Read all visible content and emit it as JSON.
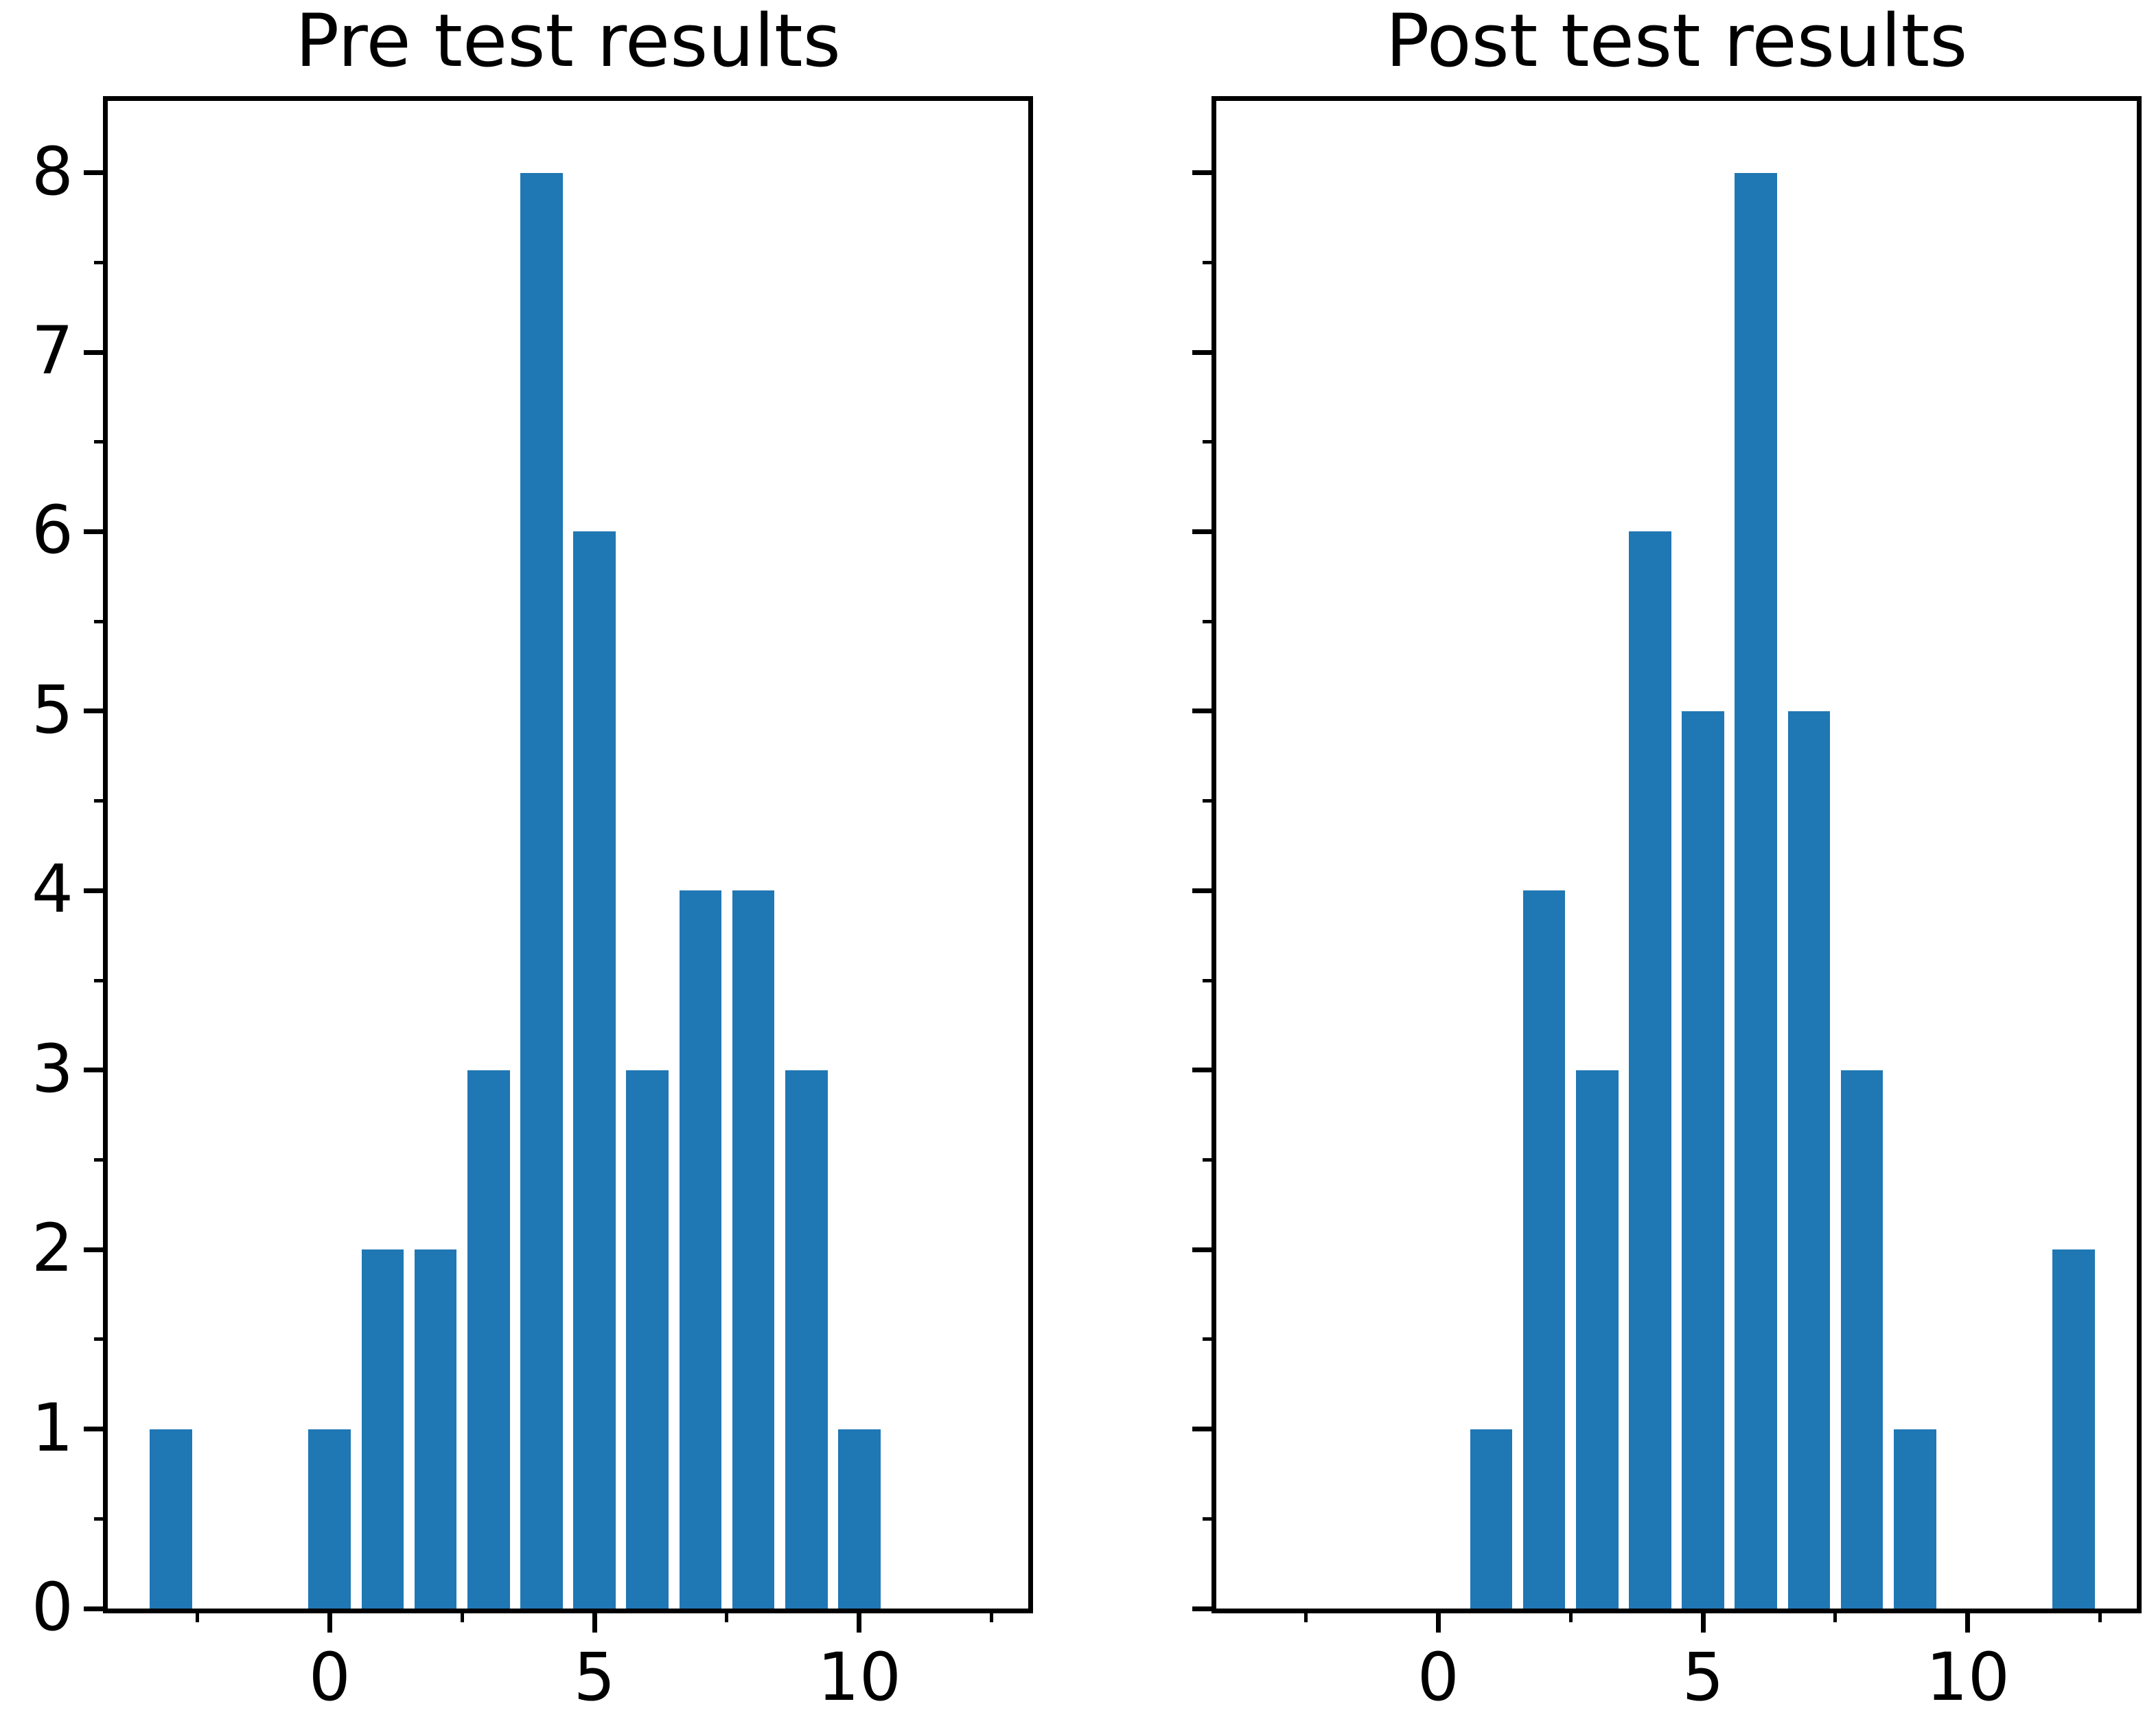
{
  "figure": {
    "background": "#ffffff",
    "text_color": "#000000",
    "axis_color": "#000000"
  },
  "chart_data": [
    {
      "type": "bar",
      "title": "Pre test results",
      "x": [
        -3,
        0,
        1,
        2,
        3,
        4,
        5,
        6,
        7,
        8,
        9,
        10
      ],
      "values": [
        1,
        1,
        2,
        2,
        3,
        8,
        6,
        3,
        4,
        4,
        3,
        1
      ],
      "bar_color": "#1f77b4",
      "bar_width": 0.8,
      "xlim": [
        -4.19,
        13.19
      ],
      "ylim": [
        0,
        8.4
      ],
      "xticks": [
        0,
        5,
        10
      ],
      "xtick_labels": [
        "0",
        "5",
        "10"
      ],
      "xticks_minor": [
        -2.5,
        2.5,
        7.5,
        12.5
      ],
      "yticks": [
        0,
        1,
        2,
        3,
        4,
        5,
        6,
        7,
        8
      ],
      "ytick_labels": [
        "0",
        "1",
        "2",
        "3",
        "4",
        "5",
        "6",
        "7",
        "8"
      ],
      "yticks_minor": [
        0.5,
        1.5,
        2.5,
        3.5,
        4.5,
        5.5,
        6.5,
        7.5
      ],
      "show_y_tick_labels": true,
      "grid": false,
      "legend": null
    },
    {
      "type": "bar",
      "title": "Post test results",
      "x": [
        1,
        2,
        3,
        4,
        5,
        6,
        7,
        8,
        9,
        12
      ],
      "values": [
        1,
        4,
        3,
        6,
        5,
        8,
        5,
        3,
        1,
        2
      ],
      "bar_color": "#1f77b4",
      "bar_width": 0.8,
      "xlim": [
        -4.19,
        13.19
      ],
      "ylim": [
        0,
        8.4
      ],
      "xticks": [
        0,
        5,
        10
      ],
      "xtick_labels": [
        "0",
        "5",
        "10"
      ],
      "xticks_minor": [
        -2.5,
        2.5,
        7.5,
        12.5
      ],
      "yticks": [
        0,
        1,
        2,
        3,
        4,
        5,
        6,
        7,
        8
      ],
      "ytick_labels": [],
      "yticks_minor": [
        0.5,
        1.5,
        2.5,
        3.5,
        4.5,
        5.5,
        6.5,
        7.5
      ],
      "show_y_tick_labels": false,
      "grid": false,
      "legend": null
    }
  ]
}
